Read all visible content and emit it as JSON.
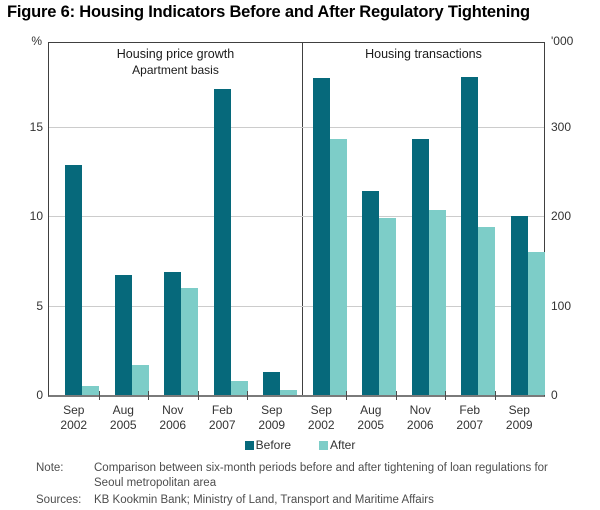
{
  "title": "Figure 6: Housing Indicators Before and After Regulatory Tightening",
  "chart_data": [
    {
      "type": "bar",
      "title": "Housing price growth",
      "subtitle": "Apartment basis",
      "axis_unit": "%",
      "axis_side": "left",
      "categories": [
        "Sep 2002",
        "Aug 2005",
        "Nov 2006",
        "Feb 2007",
        "Sep 2009"
      ],
      "series": [
        {
          "name": "Before",
          "values": [
            12.9,
            6.7,
            6.9,
            17.1,
            1.3
          ]
        },
        {
          "name": "After",
          "values": [
            0.5,
            1.7,
            6.0,
            0.8,
            0.3
          ]
        }
      ],
      "yticks": [
        0,
        5,
        10,
        15
      ],
      "ylim": [
        0,
        19.7
      ],
      "grid": true,
      "legend_position": "bottom-center"
    },
    {
      "type": "bar",
      "title": "Housing transactions",
      "subtitle": "",
      "axis_unit": "'000",
      "axis_side": "right",
      "categories": [
        "Sep 2002",
        "Aug 2005",
        "Nov 2006",
        "Feb 2007",
        "Sep 2009"
      ],
      "series": [
        {
          "name": "Before",
          "values": [
            355,
            228,
            286,
            356,
            200
          ]
        },
        {
          "name": "After",
          "values": [
            287,
            198,
            207,
            188,
            160
          ]
        }
      ],
      "yticks": [
        0,
        100,
        200,
        300
      ],
      "ylim": [
        0,
        394
      ],
      "grid": true,
      "legend_position": "bottom-center"
    }
  ],
  "legend": {
    "items": [
      {
        "label": "Before",
        "color": "#06697b"
      },
      {
        "label": "After",
        "color": "#7dcdc8"
      }
    ]
  },
  "colors": {
    "before": "#06697b",
    "after": "#7dcdc8",
    "gridline": "#cccccc",
    "frame": "#404040"
  },
  "note": {
    "label": "Note:",
    "text": "Comparison between six-month periods before and after tightening of loan regulations for Seoul metropolitan area"
  },
  "sources": {
    "label": "Sources:",
    "text": "KB Kookmin Bank; Ministry of Land, Transport and Maritime Affairs"
  }
}
